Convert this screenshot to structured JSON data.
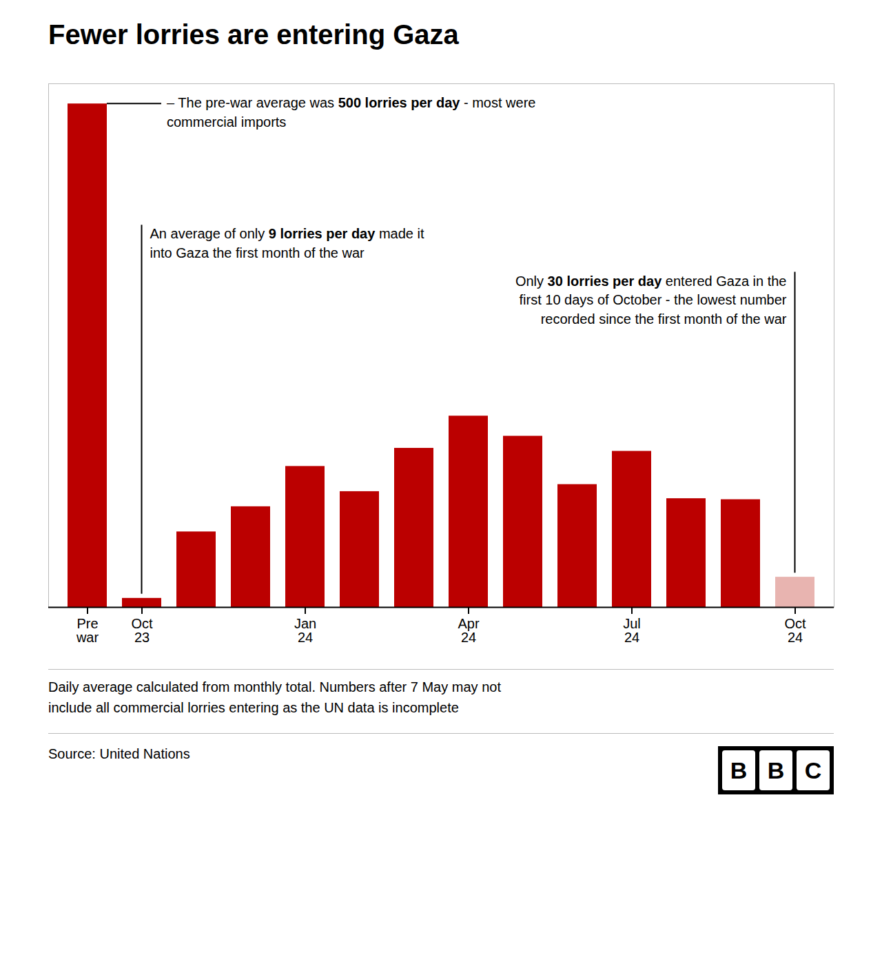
{
  "chart_data": {
    "type": "bar",
    "title": "Fewer lorries are entering Gaza",
    "categories": [
      "Pre\nwar",
      "Oct\n23",
      null,
      null,
      "Jan\n24",
      null,
      null,
      "Apr\n24",
      null,
      null,
      "Jul\n24",
      null,
      null,
      "Oct\n24"
    ],
    "values": [
      500,
      9,
      75,
      100,
      140,
      115,
      158,
      190,
      170,
      122,
      155,
      108,
      107,
      30
    ],
    "colors": [
      "#bb0000",
      "#bb0000",
      "#bb0000",
      "#bb0000",
      "#bb0000",
      "#bb0000",
      "#bb0000",
      "#bb0000",
      "#bb0000",
      "#bb0000",
      "#bb0000",
      "#bb0000",
      "#bb0000",
      "#e8b4b0"
    ],
    "ylim": [
      0,
      520
    ],
    "grid": false,
    "tick_labels": "x",
    "annotations": [
      {
        "text": "– The pre-war average was 500 lorries per day - most were\ncommercial imports",
        "bold": "500 lorries per day",
        "at": "Pre\nwar"
      },
      {
        "text": "An average of only 9 lorries per day made it\ninto Gaza the first month of the war",
        "bold": "9 lorries per day",
        "at": "Oct\n23"
      },
      {
        "text": "Only 30 lorries per day entered Gaza in the\nfirst 10 days of October - the lowest number\nrecorded since the first month of the war",
        "bold": "30 lorries per day",
        "at": "Oct\n24"
      }
    ],
    "footnote": "Daily average calculated from monthly total. Numbers after 7 May may not\ninclude all commercial lorries entering as the UN data is incomplete",
    "source": "Source: United Nations",
    "logo": "BBC"
  }
}
